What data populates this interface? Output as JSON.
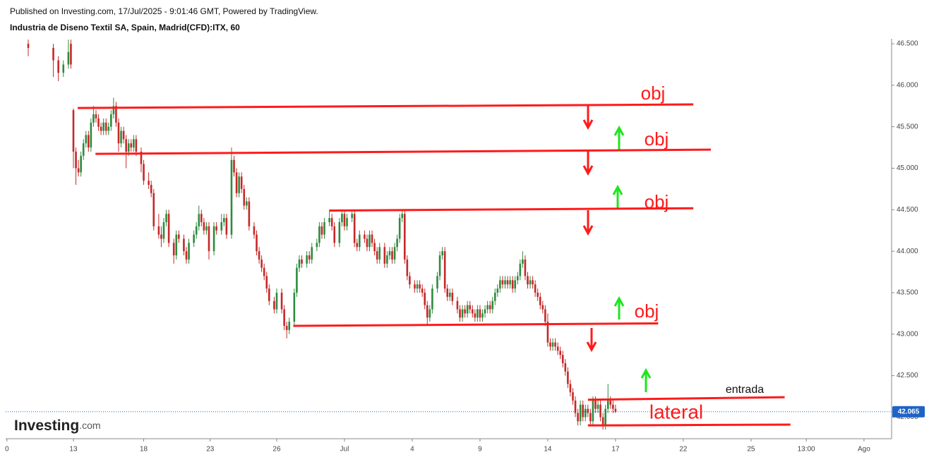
{
  "header": {
    "published": "Published on Investing.com, 17/Jul/2025 - 9:01:46 GMT, Powered by TradingView.",
    "instrument": "Industria de Diseno Textil SA, Spain, Madrid(CFD):ITX, 60"
  },
  "logo": [
    "Investing",
    ".com"
  ],
  "chart_data": {
    "type": "candlestick",
    "up_color": "#2e8b3e",
    "down_color": "#c62828",
    "line_color": "#ff1a1a",
    "xlim": [
      0,
      353
    ],
    "ylim": [
      41.74,
      46.56
    ],
    "xticks": [
      {
        "value": 0.5,
        "label": "0"
      },
      {
        "value": 27,
        "label": "13"
      },
      {
        "value": 55,
        "label": "18"
      },
      {
        "value": 81.5,
        "label": "23"
      },
      {
        "value": 108,
        "label": "26"
      },
      {
        "value": 135,
        "label": "Jul"
      },
      {
        "value": 162,
        "label": "4"
      },
      {
        "value": 189,
        "label": "9"
      },
      {
        "value": 216,
        "label": "14"
      },
      {
        "value": 243,
        "label": "17"
      },
      {
        "value": 270,
        "label": "22"
      },
      {
        "value": 297,
        "label": "25"
      },
      {
        "value": 319,
        "label": "13:00"
      },
      {
        "value": 342,
        "label": "Ago"
      }
    ],
    "yticks": [
      {
        "value": 42,
        "label": "42.000"
      },
      {
        "value": 42.5,
        "label": "42.500"
      },
      {
        "value": 43,
        "label": "43.000"
      },
      {
        "value": 43.5,
        "label": "43.500"
      },
      {
        "value": 44,
        "label": "44.000"
      },
      {
        "value": 44.5,
        "label": "44.500"
      },
      {
        "value": 45,
        "label": "45.000"
      },
      {
        "value": 45.5,
        "label": "45.500"
      },
      {
        "value": 46,
        "label": "46.000"
      },
      {
        "value": 46.5,
        "label": "46.500"
      }
    ],
    "last_price": 42.065,
    "x": [
      9,
      19,
      21,
      23,
      25,
      26,
      27,
      28,
      29,
      30,
      31,
      32,
      33,
      34,
      35,
      36,
      37,
      38,
      39,
      40,
      41,
      42,
      43,
      44,
      45,
      46,
      47,
      48,
      49,
      50,
      51,
      52,
      54,
      55,
      57,
      58,
      59,
      61,
      62,
      63,
      64,
      65,
      67,
      68,
      69,
      71,
      72,
      73,
      75,
      76,
      77,
      78,
      79,
      80,
      81,
      83,
      84,
      86,
      87,
      88,
      90,
      91,
      92,
      93,
      94,
      95,
      96,
      97,
      99,
      100,
      101,
      102,
      103,
      104,
      105,
      107,
      108,
      110,
      111,
      112,
      113,
      115,
      116,
      117,
      118,
      120,
      121,
      122,
      124,
      125,
      126,
      127,
      129,
      130,
      131,
      133,
      134,
      135,
      136,
      138,
      139,
      140,
      141,
      143,
      144,
      145,
      146,
      147,
      148,
      149,
      151,
      152,
      153,
      154,
      155,
      156,
      157,
      158,
      159,
      160,
      161,
      163,
      164,
      165,
      166,
      167,
      168,
      169,
      170,
      172,
      173,
      174,
      175,
      176,
      177,
      178,
      180,
      181,
      182,
      183,
      184,
      185,
      186,
      187,
      188,
      189,
      190,
      191,
      192,
      193,
      194,
      195,
      196,
      197,
      198,
      199,
      200,
      201,
      202,
      203,
      204,
      205,
      206,
      207,
      208,
      209,
      210,
      211,
      212,
      213,
      214,
      215,
      216,
      217,
      218,
      219,
      220,
      221,
      222,
      223,
      224,
      225,
      226,
      227,
      228,
      229,
      230,
      231,
      232,
      233,
      234,
      235,
      236,
      237,
      238,
      239,
      240,
      241,
      242,
      243
    ],
    "ohlc": [
      [
        46.5,
        46.55,
        46.35,
        46.45
      ],
      [
        46.45,
        46.5,
        46.1,
        46.3
      ],
      [
        46.3,
        46.35,
        46.05,
        46.15
      ],
      [
        46.15,
        46.3,
        46.1,
        46.25
      ],
      [
        46.25,
        46.55,
        46.2,
        46.4
      ],
      [
        46.5,
        46.55,
        46.2,
        46.25
      ],
      [
        45.7,
        45.72,
        45.0,
        45.2
      ],
      [
        45.2,
        45.25,
        44.8,
        45.0
      ],
      [
        45.0,
        45.1,
        44.9,
        44.95
      ],
      [
        44.95,
        45.2,
        44.9,
        45.15
      ],
      [
        45.15,
        45.35,
        45.1,
        45.3
      ],
      [
        45.3,
        45.45,
        45.25,
        45.4
      ],
      [
        45.4,
        45.45,
        45.2,
        45.25
      ],
      [
        45.25,
        45.6,
        45.2,
        45.55
      ],
      [
        45.55,
        45.75,
        45.5,
        45.65
      ],
      [
        45.65,
        45.7,
        45.55,
        45.6
      ],
      [
        45.6,
        45.65,
        45.45,
        45.5
      ],
      [
        45.5,
        45.55,
        45.4,
        45.45
      ],
      [
        45.45,
        45.6,
        45.4,
        45.55
      ],
      [
        45.55,
        45.6,
        45.4,
        45.45
      ],
      [
        45.45,
        45.55,
        45.4,
        45.5
      ],
      [
        45.5,
        45.7,
        45.45,
        45.65
      ],
      [
        45.65,
        45.85,
        45.6,
        45.75
      ],
      [
        45.75,
        45.8,
        45.5,
        45.55
      ],
      [
        45.55,
        45.6,
        45.2,
        45.3
      ],
      [
        45.3,
        45.5,
        45.25,
        45.45
      ],
      [
        45.45,
        45.5,
        45.3,
        45.35
      ],
      [
        45.35,
        45.4,
        45.0,
        45.2
      ],
      [
        45.2,
        45.35,
        45.15,
        45.3
      ],
      [
        45.3,
        45.35,
        45.2,
        45.25
      ],
      [
        45.25,
        45.4,
        45.2,
        45.35
      ],
      [
        45.35,
        45.4,
        45.15,
        45.2
      ],
      [
        45.2,
        45.25,
        44.95,
        45.05
      ],
      [
        45.05,
        45.1,
        44.8,
        44.85
      ],
      [
        44.85,
        44.95,
        44.75,
        44.8
      ],
      [
        44.8,
        44.85,
        44.65,
        44.7
      ],
      [
        44.7,
        44.75,
        44.25,
        44.3
      ],
      [
        44.3,
        44.45,
        44.15,
        44.2
      ],
      [
        44.2,
        44.3,
        44.05,
        44.15
      ],
      [
        44.15,
        44.4,
        44.1,
        44.35
      ],
      [
        44.35,
        44.5,
        44.3,
        44.45
      ],
      [
        44.45,
        44.5,
        44.05,
        44.1
      ],
      [
        44.1,
        44.15,
        43.85,
        43.95
      ],
      [
        43.95,
        44.25,
        43.9,
        44.2
      ],
      [
        44.2,
        44.25,
        44.1,
        44.15
      ],
      [
        44.15,
        44.2,
        43.95,
        44.0
      ],
      [
        44.0,
        44.05,
        43.85,
        43.9
      ],
      [
        43.9,
        44.15,
        43.85,
        44.1
      ],
      [
        44.1,
        44.25,
        44.05,
        44.2
      ],
      [
        44.2,
        44.35,
        44.15,
        44.3
      ],
      [
        44.3,
        44.55,
        44.25,
        44.45
      ],
      [
        44.45,
        44.5,
        44.3,
        44.35
      ],
      [
        44.35,
        44.4,
        44.2,
        44.25
      ],
      [
        44.25,
        44.35,
        44.2,
        44.3
      ],
      [
        44.3,
        44.35,
        43.9,
        44.0
      ],
      [
        44.0,
        44.35,
        43.95,
        44.3
      ],
      [
        44.3,
        44.35,
        44.2,
        44.25
      ],
      [
        44.25,
        44.45,
        44.2,
        44.35
      ],
      [
        44.35,
        44.45,
        44.3,
        44.4
      ],
      [
        44.4,
        44.45,
        44.15,
        44.2
      ],
      [
        44.2,
        45.25,
        44.15,
        45.1
      ],
      [
        45.1,
        45.15,
        44.9,
        44.95
      ],
      [
        44.95,
        45.0,
        44.65,
        44.7
      ],
      [
        44.7,
        44.95,
        44.65,
        44.9
      ],
      [
        44.9,
        44.95,
        44.7,
        44.75
      ],
      [
        44.75,
        44.8,
        44.5,
        44.55
      ],
      [
        44.55,
        44.65,
        44.5,
        44.6
      ],
      [
        44.6,
        44.65,
        44.25,
        44.3
      ],
      [
        44.3,
        44.35,
        44.15,
        44.2
      ],
      [
        44.2,
        44.25,
        43.95,
        44.0
      ],
      [
        44.0,
        44.05,
        43.85,
        43.9
      ],
      [
        43.9,
        43.95,
        43.75,
        43.8
      ],
      [
        43.8,
        43.85,
        43.65,
        43.7
      ],
      [
        43.7,
        43.75,
        43.5,
        43.55
      ],
      [
        43.55,
        43.6,
        43.35,
        43.4
      ],
      [
        43.4,
        43.45,
        43.25,
        43.3
      ],
      [
        43.3,
        43.55,
        43.25,
        43.5
      ],
      [
        43.5,
        43.55,
        43.25,
        43.3
      ],
      [
        43.3,
        43.35,
        43.05,
        43.1
      ],
      [
        43.1,
        43.15,
        42.95,
        43.05
      ],
      [
        43.05,
        43.2,
        43.0,
        43.15
      ],
      [
        43.15,
        43.55,
        43.1,
        43.5
      ],
      [
        43.5,
        43.85,
        43.45,
        43.8
      ],
      [
        43.8,
        43.95,
        43.75,
        43.9
      ],
      [
        43.9,
        43.95,
        43.8,
        43.85
      ],
      [
        43.85,
        44.0,
        43.8,
        43.95
      ],
      [
        43.95,
        44.0,
        43.85,
        43.9
      ],
      [
        43.9,
        44.1,
        43.85,
        44.05
      ],
      [
        44.05,
        44.15,
        44.0,
        44.1
      ],
      [
        44.1,
        44.35,
        44.05,
        44.3
      ],
      [
        44.3,
        44.35,
        44.15,
        44.2
      ],
      [
        44.2,
        44.4,
        44.15,
        44.35
      ],
      [
        44.35,
        44.5,
        44.3,
        44.4
      ],
      [
        44.4,
        44.45,
        44.25,
        44.3
      ],
      [
        44.3,
        44.35,
        44.05,
        44.1
      ],
      [
        44.1,
        44.4,
        44.05,
        44.35
      ],
      [
        44.35,
        44.5,
        44.3,
        44.45
      ],
      [
        44.45,
        44.5,
        44.25,
        44.3
      ],
      [
        44.3,
        44.45,
        44.25,
        44.4
      ],
      [
        44.4,
        44.5,
        44.35,
        44.45
      ],
      [
        44.45,
        44.5,
        44.05,
        44.1
      ],
      [
        44.1,
        44.15,
        44.0,
        44.05
      ],
      [
        44.05,
        44.25,
        44.0,
        44.2
      ],
      [
        44.2,
        44.25,
        44.1,
        44.15
      ],
      [
        44.15,
        44.2,
        44.0,
        44.05
      ],
      [
        44.05,
        44.25,
        44.0,
        44.2
      ],
      [
        44.2,
        44.25,
        44.05,
        44.1
      ],
      [
        44.1,
        44.15,
        43.95,
        44.0
      ],
      [
        44.0,
        44.05,
        43.85,
        43.9
      ],
      [
        43.9,
        44.1,
        43.85,
        44.05
      ],
      [
        44.05,
        44.1,
        43.8,
        43.85
      ],
      [
        43.85,
        44.0,
        43.8,
        43.95
      ],
      [
        43.95,
        44.05,
        43.9,
        44.0
      ],
      [
        44.0,
        44.05,
        43.85,
        43.9
      ],
      [
        43.9,
        44.1,
        43.85,
        44.05
      ],
      [
        44.05,
        44.2,
        44.0,
        44.15
      ],
      [
        44.15,
        44.45,
        44.1,
        44.4
      ],
      [
        44.4,
        44.5,
        44.35,
        44.45
      ],
      [
        44.45,
        44.5,
        43.85,
        43.9
      ],
      [
        43.9,
        43.95,
        43.65,
        43.7
      ],
      [
        43.7,
        43.75,
        43.55,
        43.6
      ],
      [
        43.6,
        43.65,
        43.5,
        43.55
      ],
      [
        43.55,
        43.65,
        43.5,
        43.6
      ],
      [
        43.6,
        43.65,
        43.5,
        43.55
      ],
      [
        43.55,
        43.6,
        43.45,
        43.5
      ],
      [
        43.5,
        43.55,
        43.3,
        43.35
      ],
      [
        43.35,
        43.4,
        43.1,
        43.2
      ],
      [
        43.2,
        43.35,
        43.15,
        43.3
      ],
      [
        43.3,
        43.6,
        43.25,
        43.55
      ],
      [
        43.55,
        43.75,
        43.5,
        43.7
      ],
      [
        43.7,
        44.0,
        43.65,
        43.95
      ],
      [
        43.95,
        44.05,
        43.9,
        44.0
      ],
      [
        44.0,
        44.05,
        43.5,
        43.55
      ],
      [
        43.55,
        43.6,
        43.4,
        43.45
      ],
      [
        43.45,
        43.55,
        43.4,
        43.5
      ],
      [
        43.5,
        43.55,
        43.35,
        43.4
      ],
      [
        43.4,
        43.45,
        43.25,
        43.3
      ],
      [
        43.3,
        43.35,
        43.15,
        43.2
      ],
      [
        43.2,
        43.35,
        43.15,
        43.3
      ],
      [
        43.3,
        43.35,
        43.2,
        43.25
      ],
      [
        43.25,
        43.4,
        43.2,
        43.35
      ],
      [
        43.35,
        43.4,
        43.25,
        43.3
      ],
      [
        43.3,
        43.35,
        43.2,
        43.25
      ],
      [
        43.25,
        43.3,
        43.15,
        43.2
      ],
      [
        43.2,
        43.35,
        43.15,
        43.3
      ],
      [
        43.3,
        43.35,
        43.15,
        43.2
      ],
      [
        43.2,
        43.3,
        43.15,
        43.25
      ],
      [
        43.25,
        43.35,
        43.2,
        43.3
      ],
      [
        43.3,
        43.4,
        43.25,
        43.35
      ],
      [
        43.35,
        43.4,
        43.25,
        43.3
      ],
      [
        43.3,
        43.45,
        43.25,
        43.4
      ],
      [
        43.4,
        43.55,
        43.35,
        43.5
      ],
      [
        43.5,
        43.6,
        43.45,
        43.55
      ],
      [
        43.55,
        43.7,
        43.5,
        43.65
      ],
      [
        43.65,
        43.7,
        43.55,
        43.6
      ],
      [
        43.6,
        43.7,
        43.55,
        43.65
      ],
      [
        43.65,
        43.7,
        43.55,
        43.6
      ],
      [
        43.6,
        43.7,
        43.55,
        43.65
      ],
      [
        43.65,
        43.7,
        43.5,
        43.55
      ],
      [
        43.55,
        43.7,
        43.5,
        43.65
      ],
      [
        43.65,
        43.75,
        43.6,
        43.7
      ],
      [
        43.7,
        43.9,
        43.65,
        43.85
      ],
      [
        43.85,
        44.0,
        43.8,
        43.9
      ],
      [
        43.9,
        43.95,
        43.65,
        43.7
      ],
      [
        43.7,
        43.75,
        43.55,
        43.6
      ],
      [
        43.6,
        43.7,
        43.55,
        43.65
      ],
      [
        43.65,
        43.7,
        43.55,
        43.6
      ],
      [
        43.6,
        43.65,
        43.45,
        43.5
      ],
      [
        43.5,
        43.55,
        43.4,
        43.45
      ],
      [
        43.45,
        43.5,
        43.3,
        43.35
      ],
      [
        43.35,
        43.4,
        43.25,
        43.3
      ],
      [
        43.3,
        43.35,
        43.1,
        43.15
      ],
      [
        43.15,
        43.25,
        42.85,
        42.9
      ],
      [
        42.9,
        42.95,
        42.8,
        42.85
      ],
      [
        42.85,
        42.95,
        42.8,
        42.9
      ],
      [
        42.9,
        42.95,
        42.8,
        42.85
      ],
      [
        42.85,
        42.9,
        42.75,
        42.8
      ],
      [
        42.8,
        42.85,
        42.7,
        42.75
      ],
      [
        42.75,
        42.8,
        42.6,
        42.65
      ],
      [
        42.65,
        42.7,
        42.5,
        42.55
      ],
      [
        42.55,
        42.6,
        42.35,
        42.4
      ],
      [
        42.4,
        42.45,
        42.25,
        42.3
      ],
      [
        42.3,
        42.35,
        42.15,
        42.2
      ],
      [
        42.2,
        42.25,
        42.0,
        42.05
      ],
      [
        42.05,
        42.1,
        41.9,
        41.95
      ],
      [
        41.95,
        42.2,
        41.9,
        42.15
      ],
      [
        42.15,
        42.2,
        41.95,
        42.0
      ],
      [
        42.0,
        42.15,
        41.95,
        42.1
      ],
      [
        42.1,
        42.15,
        42.0,
        42.05
      ],
      [
        42.05,
        42.1,
        41.9,
        41.95
      ],
      [
        41.95,
        42.25,
        41.9,
        42.2
      ],
      [
        42.2,
        42.25,
        42.05,
        42.1
      ],
      [
        42.1,
        42.2,
        42.05,
        42.15
      ],
      [
        42.15,
        42.2,
        41.95,
        42.0
      ],
      [
        42.0,
        42.05,
        41.85,
        41.9
      ],
      [
        41.9,
        42.15,
        41.85,
        42.1
      ],
      [
        42.1,
        42.4,
        42.05,
        42.2
      ],
      [
        42.2,
        42.25,
        42.1,
        42.15
      ],
      [
        42.15,
        42.2,
        42.05,
        42.1
      ],
      [
        42.1,
        42.15,
        42.05,
        42.065
      ]
    ],
    "lines": [
      {
        "x": [
          28.7,
          274
        ],
        "y": [
          45.726,
          45.769
        ]
      },
      {
        "x": [
          35.8,
          281
        ],
        "y": [
          45.173,
          45.224
        ]
      },
      {
        "x": [
          129,
          274
        ],
        "y": [
          44.49,
          44.518
        ]
      },
      {
        "x": [
          114.6,
          260
        ],
        "y": [
          43.1,
          43.13
        ]
      },
      {
        "x": [
          232,
          310.4
        ],
        "y": [
          42.21,
          42.24
        ]
      },
      {
        "x": [
          232,
          312.7
        ],
        "y": [
          41.9,
          41.91
        ]
      }
    ],
    "annotations": [
      "obj",
      "obj",
      "obj",
      "obj",
      "entrada",
      "lateral"
    ]
  }
}
